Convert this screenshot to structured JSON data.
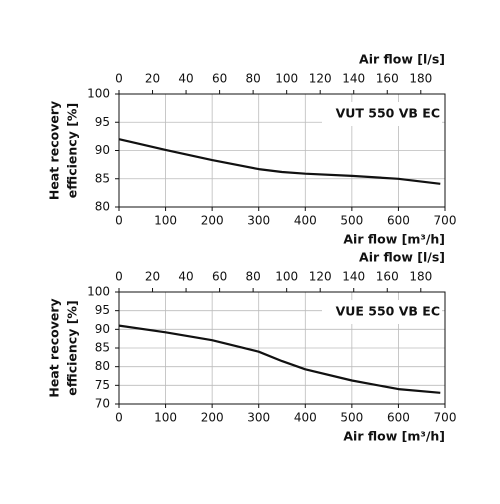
{
  "chart_data": [
    {
      "type": "line",
      "annotation": "VUT 550 VB EC",
      "xlabel": "Air flow [m³/h]",
      "x2label": "Air flow [l/s]",
      "ylabel": [
        "Heat recovery",
        "efficiency [%]"
      ],
      "x": [
        0,
        100,
        200,
        300,
        350,
        400,
        500,
        600,
        690
      ],
      "series": [
        {
          "color": "#111111",
          "values": [
            92,
            90.1,
            88.3,
            86.7,
            86.2,
            85.9,
            85.5,
            85,
            84.1
          ]
        }
      ],
      "xlim": [
        0,
        700
      ],
      "xticks": [
        0,
        100,
        200,
        300,
        400,
        500,
        600,
        700
      ],
      "x2lim": [
        0,
        194.44
      ],
      "x2ticks": [
        0,
        20,
        40,
        60,
        80,
        100,
        120,
        140,
        160,
        180
      ],
      "ylim": [
        80,
        100
      ],
      "yticks": [
        80,
        85,
        90,
        95,
        100
      ],
      "grid": true
    },
    {
      "type": "line",
      "annotation": "VUE 550 VB EC",
      "xlabel": "Air flow [m³/h]",
      "x2label": "Air flow [l/s]",
      "ylabel": [
        "Heat recovery",
        "efficiency [%]"
      ],
      "x": [
        0,
        100,
        200,
        300,
        350,
        400,
        500,
        600,
        690
      ],
      "series": [
        {
          "color": "#111111",
          "values": [
            91,
            89.2,
            87.1,
            84,
            81.5,
            79.3,
            76.3,
            74,
            73
          ]
        }
      ],
      "xlim": [
        0,
        700
      ],
      "xticks": [
        0,
        100,
        200,
        300,
        400,
        500,
        600,
        700
      ],
      "x2lim": [
        0,
        194.44
      ],
      "x2ticks": [
        0,
        20,
        40,
        60,
        80,
        100,
        120,
        140,
        160,
        180
      ],
      "ylim": [
        70,
        100
      ],
      "yticks": [
        70,
        75,
        80,
        85,
        90,
        95,
        100
      ],
      "grid": true
    }
  ]
}
